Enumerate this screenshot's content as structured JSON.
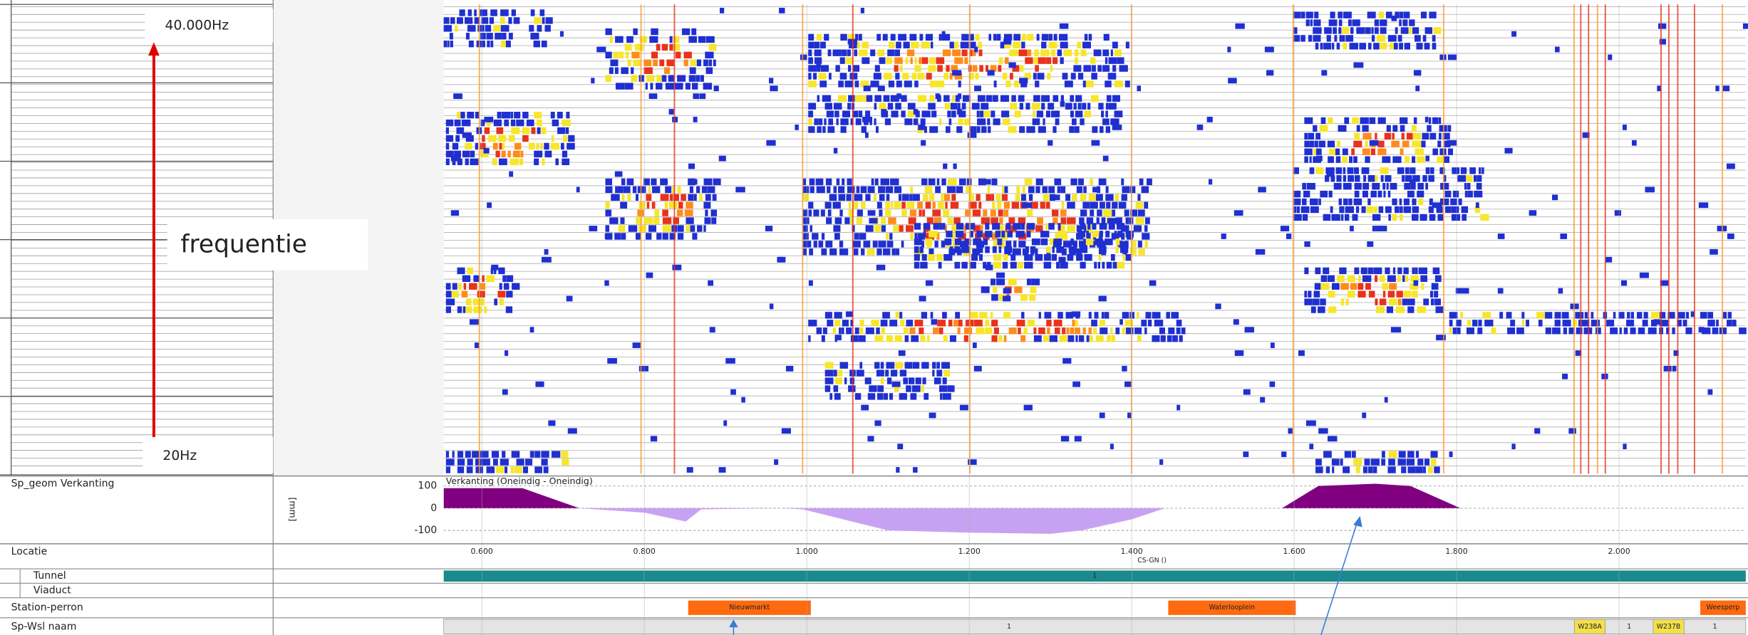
{
  "left_panel": {
    "freq_top": "40.000Hz",
    "freq_label": "frequentie",
    "freq_bottom": "20Hz"
  },
  "chart_data": {
    "type": "area",
    "panel_label": "Sp_geom Verkanting",
    "title": "Verkanting (Oneindig - Oneindig)",
    "y_label": "[mm]",
    "x_label": "Locatie",
    "x_axis_name": "CS-GN ()",
    "x": [
      0.553,
      0.65,
      0.72,
      0.8,
      0.851,
      0.87,
      0.968,
      0.995,
      1.1,
      1.2,
      1.3,
      1.338,
      1.4,
      1.441,
      1.585,
      1.63,
      1.7,
      1.743,
      1.805,
      2.156
    ],
    "values": [
      90,
      90,
      0,
      -20,
      -60,
      -5,
      0,
      -5,
      -100,
      -110,
      -115,
      -100,
      -50,
      0,
      0,
      100,
      110,
      100,
      0,
      0
    ],
    "colors": {
      "positive": "#800080",
      "negative": "#c8a2f2"
    },
    "xlim": [
      0.553,
      2.156
    ],
    "ylim": [
      -155,
      145
    ],
    "xticks": [
      {
        "value": 0.6,
        "label": "0.600"
      },
      {
        "value": 0.8,
        "label": "0.800"
      },
      {
        "value": 1.0,
        "label": "1.000"
      },
      {
        "value": 1.2,
        "label": "1.200"
      },
      {
        "value": 1.4,
        "label": "1.400"
      },
      {
        "value": 1.6,
        "label": "1.600"
      },
      {
        "value": 1.8,
        "label": "1.800"
      },
      {
        "value": 2.0,
        "label": "2.000"
      }
    ],
    "yticks": [
      -100,
      0,
      100
    ]
  },
  "tracks": [
    {
      "label": "Tunnel",
      "segments": [
        {
          "label": "1",
          "start": 0.553,
          "end": 2.156,
          "color": "#1b8a8c"
        }
      ]
    },
    {
      "label": "Viaduct",
      "segments": []
    },
    {
      "label": "Station-perron",
      "segments": [
        {
          "label": "Nieuwmarkt",
          "start": 0.854,
          "end": 1.005,
          "color": "#ff6a10"
        },
        {
          "label": "Waterlooplein",
          "start": 1.445,
          "end": 1.602,
          "color": "#ff6a10"
        },
        {
          "label": "Weesperp",
          "start": 2.1,
          "end": 2.156,
          "color": "#ff6a10"
        }
      ]
    },
    {
      "label": "Sp-Wsl naam",
      "segments": [
        {
          "label": "1",
          "start": 0.553,
          "end": 1.945,
          "color": "#e4e4e4"
        },
        {
          "label": "W238A",
          "start": 1.945,
          "end": 1.983,
          "color": "#f4e04a"
        },
        {
          "label": "1",
          "start": 1.983,
          "end": 2.042,
          "color": "#e4e4e4"
        },
        {
          "label": "W237B",
          "start": 2.042,
          "end": 2.08,
          "color": "#f4e04a"
        },
        {
          "label": "1",
          "start": 2.08,
          "end": 2.156,
          "color": "#e4e4e4"
        }
      ]
    }
  ]
}
